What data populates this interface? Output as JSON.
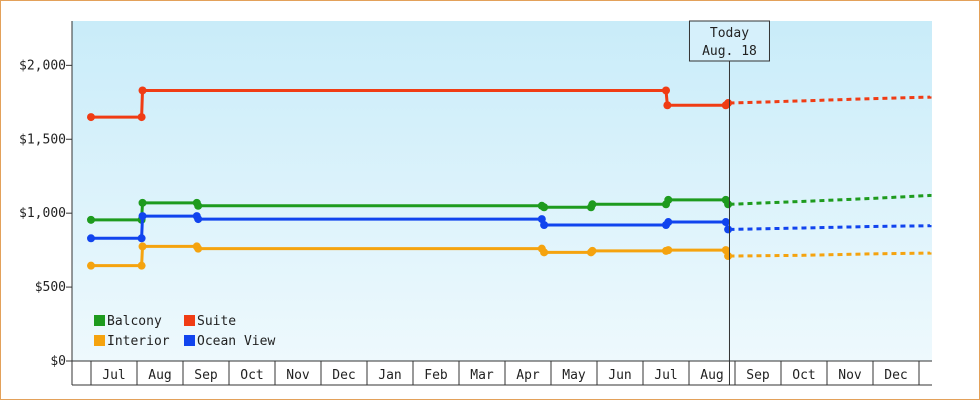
{
  "chart_data": {
    "type": "line",
    "title": "",
    "xlabel": "",
    "ylabel": "",
    "ylim": [
      0,
      2300
    ],
    "yticks": [
      {
        "value": 0,
        "label": "$0"
      },
      {
        "value": 500,
        "label": "$500"
      },
      {
        "value": 1000,
        "label": "$1,000"
      },
      {
        "value": 1500,
        "label": "$1,500"
      },
      {
        "value": 2000,
        "label": "$2,000"
      }
    ],
    "months": [
      "Jul",
      "Aug",
      "Sep",
      "Oct",
      "Nov",
      "Dec",
      "Jan",
      "Feb",
      "Mar",
      "Apr",
      "May",
      "Jun",
      "Jul",
      "Aug",
      "Sep",
      "Oct",
      "Nov",
      "Dec"
    ],
    "today_marker": {
      "line1": "Today",
      "line2": "Aug. 18",
      "x": 13.38
    },
    "legend": {
      "placement": "bottom-left"
    },
    "series": [
      {
        "name": "Balcony",
        "color": "#1e9b1e",
        "points": [
          [
            -0.5,
            955
          ],
          [
            0.6,
            955
          ],
          [
            0.62,
            1070
          ],
          [
            1.8,
            1070
          ],
          [
            1.83,
            1050
          ],
          [
            9.3,
            1050
          ],
          [
            9.35,
            1040
          ],
          [
            10.37,
            1040
          ],
          [
            10.4,
            1060
          ],
          [
            12.0,
            1060
          ],
          [
            12.05,
            1090
          ],
          [
            13.3,
            1090
          ],
          [
            13.35,
            1060
          ]
        ],
        "forecast": [
          [
            13.38,
            1060
          ],
          [
            15.0,
            1080
          ],
          [
            16.5,
            1100
          ],
          [
            18.0,
            1120
          ],
          [
            19.0,
            1130
          ]
        ]
      },
      {
        "name": "Suite",
        "color": "#f03c14",
        "points": [
          [
            -0.5,
            1650
          ],
          [
            0.6,
            1650
          ],
          [
            0.62,
            1830
          ],
          [
            9.3,
            1830
          ],
          [
            12.0,
            1830
          ],
          [
            12.03,
            1730
          ],
          [
            13.3,
            1730
          ],
          [
            13.35,
            1745
          ]
        ],
        "forecast": [
          [
            13.38,
            1745
          ],
          [
            15.0,
            1760
          ],
          [
            16.5,
            1775
          ],
          [
            18.0,
            1785
          ],
          [
            19.0,
            1790
          ]
        ]
      },
      {
        "name": "Interior",
        "color": "#f5a30f",
        "points": [
          [
            -0.5,
            645
          ],
          [
            0.6,
            645
          ],
          [
            0.62,
            775
          ],
          [
            1.8,
            775
          ],
          [
            1.83,
            760
          ],
          [
            9.3,
            760
          ],
          [
            9.35,
            735
          ],
          [
            10.37,
            735
          ],
          [
            10.4,
            745
          ],
          [
            12.0,
            745
          ],
          [
            12.05,
            750
          ],
          [
            13.3,
            750
          ],
          [
            13.35,
            710
          ]
        ],
        "forecast": [
          [
            13.38,
            710
          ],
          [
            15.0,
            715
          ],
          [
            16.5,
            725
          ],
          [
            18.0,
            730
          ],
          [
            19.0,
            735
          ]
        ]
      },
      {
        "name": "Ocean View",
        "color": "#1144ee",
        "points": [
          [
            -0.5,
            830
          ],
          [
            0.6,
            830
          ],
          [
            0.62,
            980
          ],
          [
            1.8,
            980
          ],
          [
            1.83,
            960
          ],
          [
            9.3,
            960
          ],
          [
            9.35,
            920
          ],
          [
            12.0,
            920
          ],
          [
            12.05,
            940
          ],
          [
            13.3,
            940
          ],
          [
            13.35,
            890
          ]
        ],
        "forecast": [
          [
            13.38,
            890
          ],
          [
            15.0,
            900
          ],
          [
            16.5,
            910
          ],
          [
            18.0,
            915
          ],
          [
            19.0,
            920
          ]
        ]
      }
    ]
  }
}
